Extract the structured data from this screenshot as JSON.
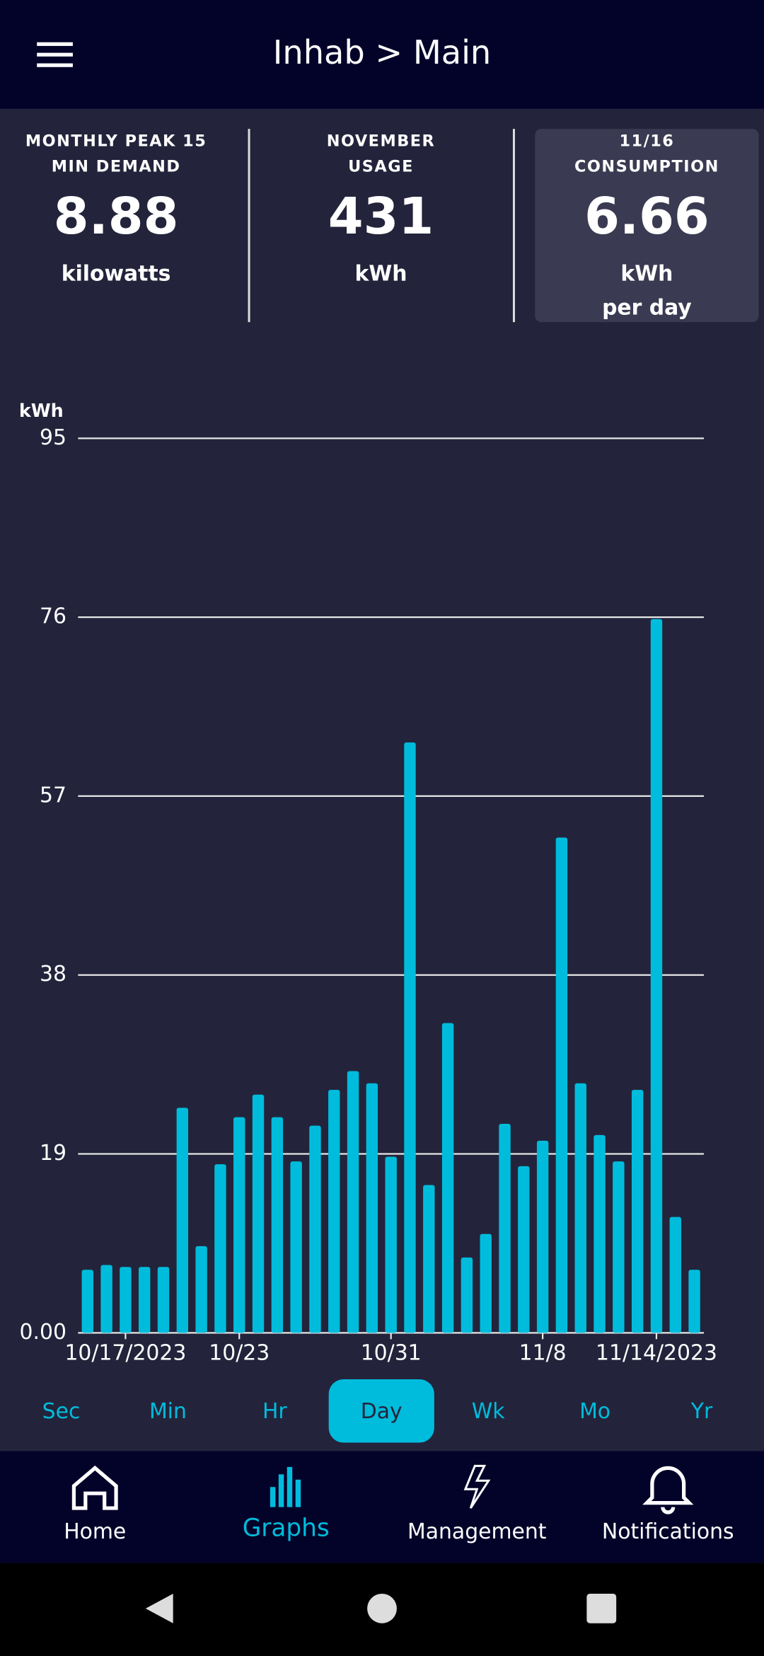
{
  "header": {
    "title": "Inhab > Main"
  },
  "cards": [
    {
      "label": [
        "MONTHLY PEAK 15",
        "MIN DEMAND"
      ],
      "value": "8.88",
      "unit": [
        "kilowatts"
      ]
    },
    {
      "label": [
        "NOVEMBER",
        "USAGE"
      ],
      "value": "431",
      "unit": [
        "kWh"
      ]
    },
    {
      "label": [
        "11/16",
        "CONSUMPTION"
      ],
      "value": "6.66",
      "unit": [
        "kWh",
        "per day"
      ]
    }
  ],
  "chart_data": {
    "type": "bar",
    "y_label": "kWh",
    "color": "#00bcdc",
    "grid": true,
    "categories": [
      null,
      null,
      "10/17/2023",
      null,
      null,
      null,
      null,
      null,
      "10/23",
      null,
      null,
      null,
      null,
      null,
      null,
      null,
      "10/31",
      null,
      null,
      null,
      null,
      null,
      null,
      null,
      "11/8",
      null,
      null,
      null,
      null,
      null,
      "11/14/2023",
      null,
      null
    ],
    "values": [
      6.7,
      7.2,
      7.0,
      7.0,
      7.0,
      23.9,
      9.2,
      17.9,
      22.9,
      25.3,
      22.9,
      18.2,
      22.0,
      25.8,
      27.8,
      26.5,
      18.7,
      62.7,
      15.7,
      32.9,
      8.0,
      10.5,
      22.2,
      17.7,
      20.4,
      52.6,
      26.5,
      21.0,
      18.2,
      25.8,
      75.8,
      12.3,
      6.7
    ],
    "ylim": [
      0,
      95
    ],
    "yticks": [
      {
        "value": 0,
        "label": "0.00"
      },
      19,
      38,
      57,
      76,
      95
    ]
  },
  "tabs": {
    "items": [
      "Sec",
      "Min",
      "Hr",
      "Day",
      "Wk",
      "Mo",
      "Yr"
    ],
    "selected": 3
  },
  "nav": {
    "items": [
      "Home",
      "Graphs",
      "Management",
      "Notifications"
    ],
    "selected": 1
  }
}
